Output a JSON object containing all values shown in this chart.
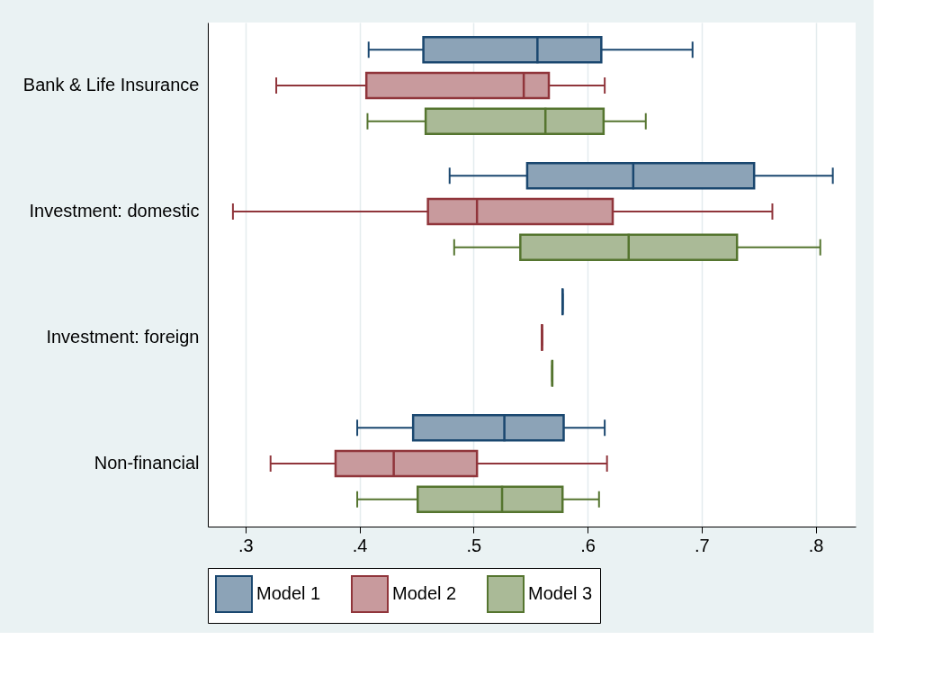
{
  "chart_data": {
    "type": "box",
    "orientation": "horizontal",
    "categories": [
      "Bank & Life Insurance",
      "Investment: domestic",
      "Investment: foreign",
      "Non-financial"
    ],
    "xlim": [
      0.267,
      0.835
    ],
    "xticks": [
      {
        "value": 0.3,
        "label": ".3"
      },
      {
        "value": 0.4,
        "label": ".4"
      },
      {
        "value": 0.5,
        "label": ".5"
      },
      {
        "value": 0.6,
        "label": ".6"
      },
      {
        "value": 0.7,
        "label": ".7"
      },
      {
        "value": 0.8,
        "label": ".8"
      }
    ],
    "grid": "x",
    "legend": "bottom",
    "series": [
      {
        "name": "Model 1",
        "color": "#1a476f",
        "boxes": [
          {
            "low": 0.408,
            "q1": 0.456,
            "median": 0.556,
            "q3": 0.612,
            "high": 0.692
          },
          {
            "low": 0.479,
            "q1": 0.547,
            "median": 0.64,
            "q3": 0.746,
            "high": 0.815
          },
          {
            "low": 0.578,
            "q1": 0.578,
            "median": 0.578,
            "q3": 0.578,
            "high": 0.578
          },
          {
            "low": 0.398,
            "q1": 0.447,
            "median": 0.527,
            "q3": 0.579,
            "high": 0.615
          }
        ]
      },
      {
        "name": "Model 2",
        "color": "#90353b",
        "boxes": [
          {
            "low": 0.327,
            "q1": 0.406,
            "median": 0.544,
            "q3": 0.566,
            "high": 0.615
          },
          {
            "low": 0.289,
            "q1": 0.46,
            "median": 0.503,
            "q3": 0.622,
            "high": 0.762
          },
          {
            "low": 0.56,
            "q1": 0.56,
            "median": 0.56,
            "q3": 0.56,
            "high": 0.56
          },
          {
            "low": 0.322,
            "q1": 0.379,
            "median": 0.43,
            "q3": 0.503,
            "high": 0.617
          }
        ]
      },
      {
        "name": "Model 3",
        "color": "#55752f",
        "boxes": [
          {
            "low": 0.407,
            "q1": 0.458,
            "median": 0.563,
            "q3": 0.614,
            "high": 0.651
          },
          {
            "low": 0.483,
            "q1": 0.541,
            "median": 0.636,
            "q3": 0.731,
            "high": 0.804
          },
          {
            "low": 0.569,
            "q1": 0.569,
            "median": 0.569,
            "q3": 0.569,
            "high": 0.569
          },
          {
            "low": 0.398,
            "q1": 0.451,
            "median": 0.525,
            "q3": 0.578,
            "high": 0.61
          }
        ]
      }
    ]
  }
}
